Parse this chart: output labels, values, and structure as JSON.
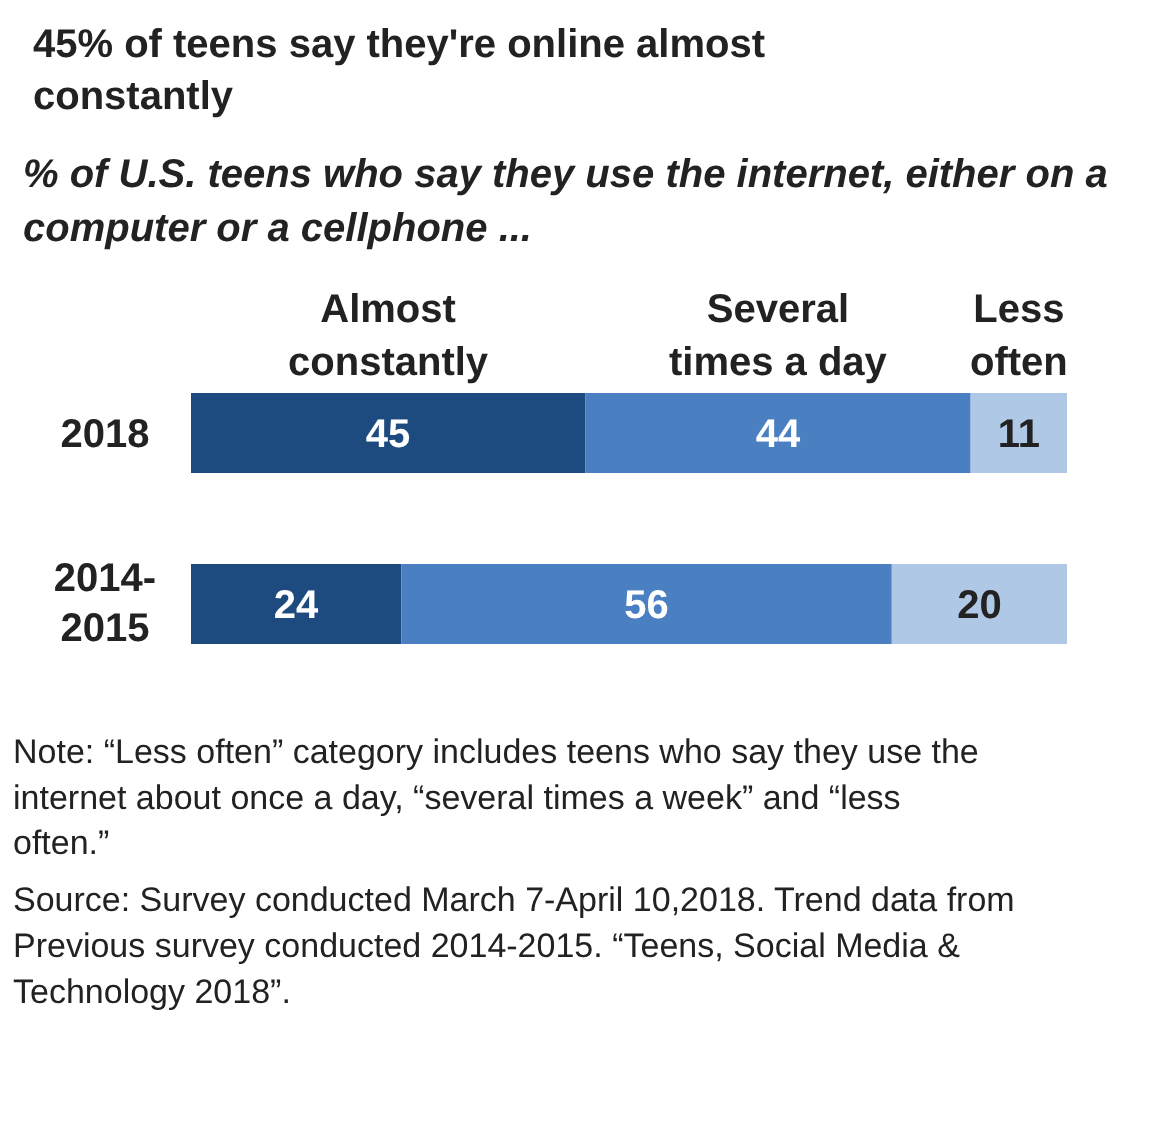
{
  "chart_data": {
    "type": "bar",
    "orientation": "horizontal",
    "stacked": true,
    "title": "45% of teens say they're online almost constantly",
    "subtitle": "% of U.S. teens who say they use the internet, either on a computer or a cellphone ...",
    "categories": [
      "2018",
      "2014-2015"
    ],
    "series": [
      {
        "name": "Almost constantly",
        "color": "#1d4a7f",
        "values": [
          45,
          24
        ]
      },
      {
        "name": "Several times a day",
        "color": "#4a7fc1",
        "values": [
          44,
          56
        ]
      },
      {
        "name": "Less often",
        "color": "#afc8e5",
        "values": [
          11,
          20
        ]
      }
    ],
    "data_labels": true,
    "tick_labels": "y",
    "annotations": [
      "Note: “Less often” category includes teens who say they use the internet about once a day, “several times a week” and “less often.”",
      "Source: Survey conducted March 7-April 10,2018. Trend data from Previous survey conducted 2014-2015. “Teens, Social Media & Technology 2018”."
    ]
  }
}
